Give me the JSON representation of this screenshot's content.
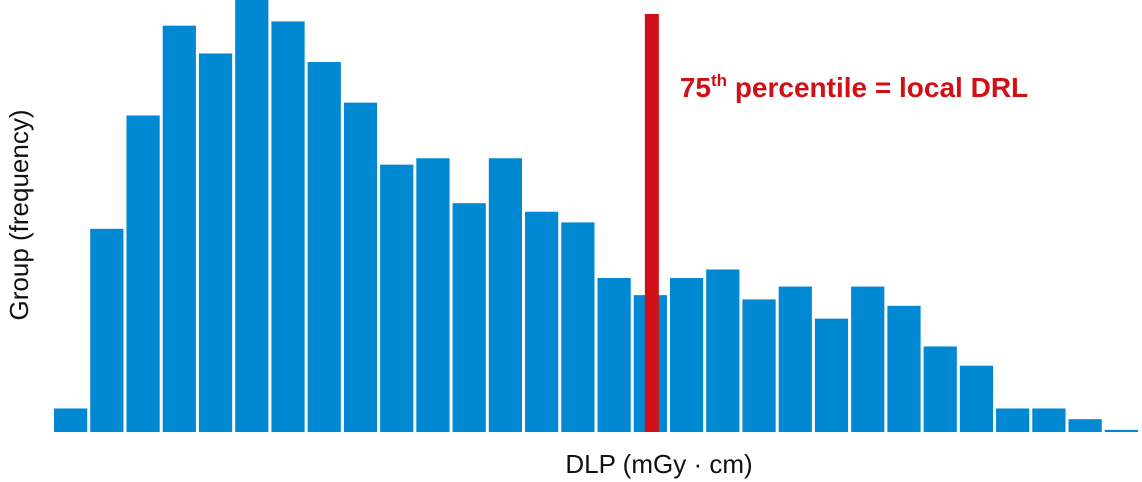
{
  "chart_data": {
    "type": "bar",
    "xlabel": "DLP (mGy · cm)",
    "ylabel": "Group (frequency)",
    "values": [
      5.5,
      47.5,
      74,
      95,
      88.5,
      101,
      96,
      86.5,
      77,
      62.5,
      64,
      53.5,
      64,
      51.5,
      49,
      36,
      32,
      36,
      38,
      31,
      34,
      26.5,
      34,
      29.5,
      20,
      15.5,
      5.5,
      5.5,
      3,
      0.5
    ],
    "ylim": [
      0,
      101
    ],
    "grid": false,
    "legend": "none",
    "bar_color": "#0088d2",
    "threshold_color": "#d01016",
    "annotation": {
      "text": "75",
      "superscript": "th",
      "suffix": " percentile = local DRL",
      "bin_position": 16.5
    }
  }
}
